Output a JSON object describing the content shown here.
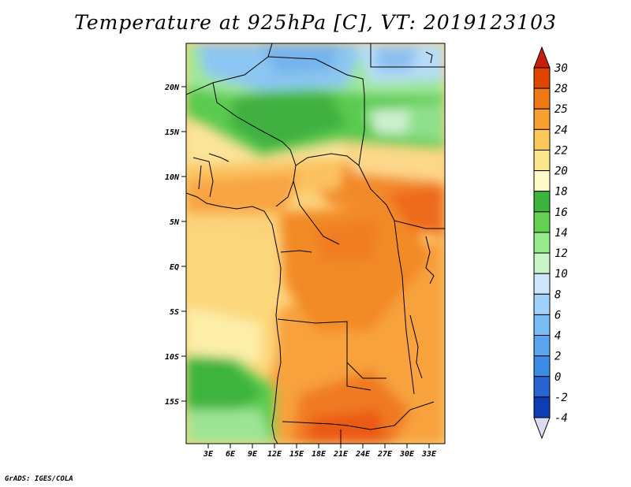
{
  "title": "Temperature at 925hPa [C], VT: 2019123103",
  "credit": "GrADS: IGES/COLA",
  "map": {
    "lat_labels": [
      "20N",
      "15N",
      "10N",
      "5N",
      "EQ",
      "5S",
      "10S",
      "15S"
    ],
    "lon_labels": [
      "3E",
      "6E",
      "9E",
      "12E",
      "15E",
      "18E",
      "21E",
      "24E",
      "27E",
      "30E",
      "33E"
    ]
  },
  "colorbar": {
    "labels": [
      "-4",
      "-2",
      "0",
      "2",
      "4",
      "6",
      "8",
      "10",
      "12",
      "14",
      "16",
      "18",
      "20",
      "22",
      "24",
      "25",
      "28",
      "30"
    ],
    "colors": [
      "#0a0a78",
      "#0f3cb4",
      "#2864d2",
      "#3c8ce6",
      "#5aa5f0",
      "#78bef5",
      "#a0d2fa",
      "#cde6fa",
      "#c8f5c8",
      "#96eb8c",
      "#64d250",
      "#3cb43c",
      "#fffac8",
      "#fce68c",
      "#fcc85a",
      "#f5a030",
      "#f07814",
      "#e14600",
      "#c81e0a"
    ]
  },
  "chart_data": {
    "type": "heatmap",
    "title": "Temperature at 925hPa [C], VT: 2019123103",
    "variable": "Temperature at 925hPa",
    "units": "C",
    "valid_time": "2019123103",
    "lon_range": [
      0,
      35
    ],
    "lat_range": [
      -20,
      24
    ],
    "color_levels": [
      -4,
      -2,
      0,
      2,
      4,
      6,
      8,
      10,
      12,
      14,
      16,
      18,
      20,
      22,
      24,
      25,
      28,
      30
    ]
  }
}
